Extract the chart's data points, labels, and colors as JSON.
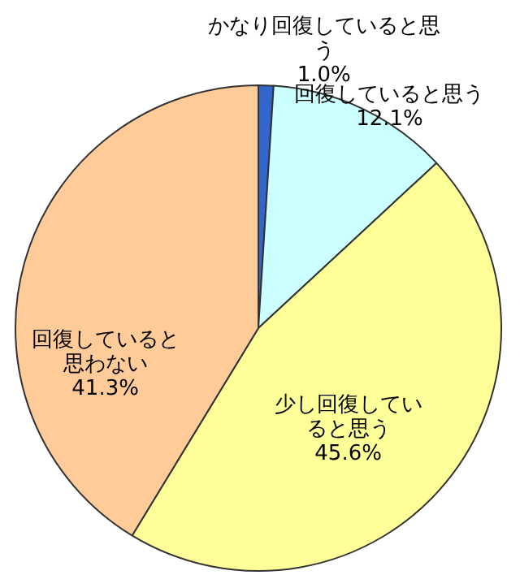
{
  "chart_data": {
    "type": "pie",
    "categories": [
      "かなり回復していると思う",
      "回復していると思う",
      "少し回復していると思う",
      "回復していると思わない"
    ],
    "values": [
      1.0,
      12.1,
      45.6,
      41.3
    ],
    "value_labels": [
      "1.0%",
      "12.1%",
      "45.6%",
      "41.3%"
    ],
    "colors": [
      "#3366cc",
      "#ccffff",
      "#ffff99",
      "#ffcc99"
    ],
    "legend": false
  }
}
